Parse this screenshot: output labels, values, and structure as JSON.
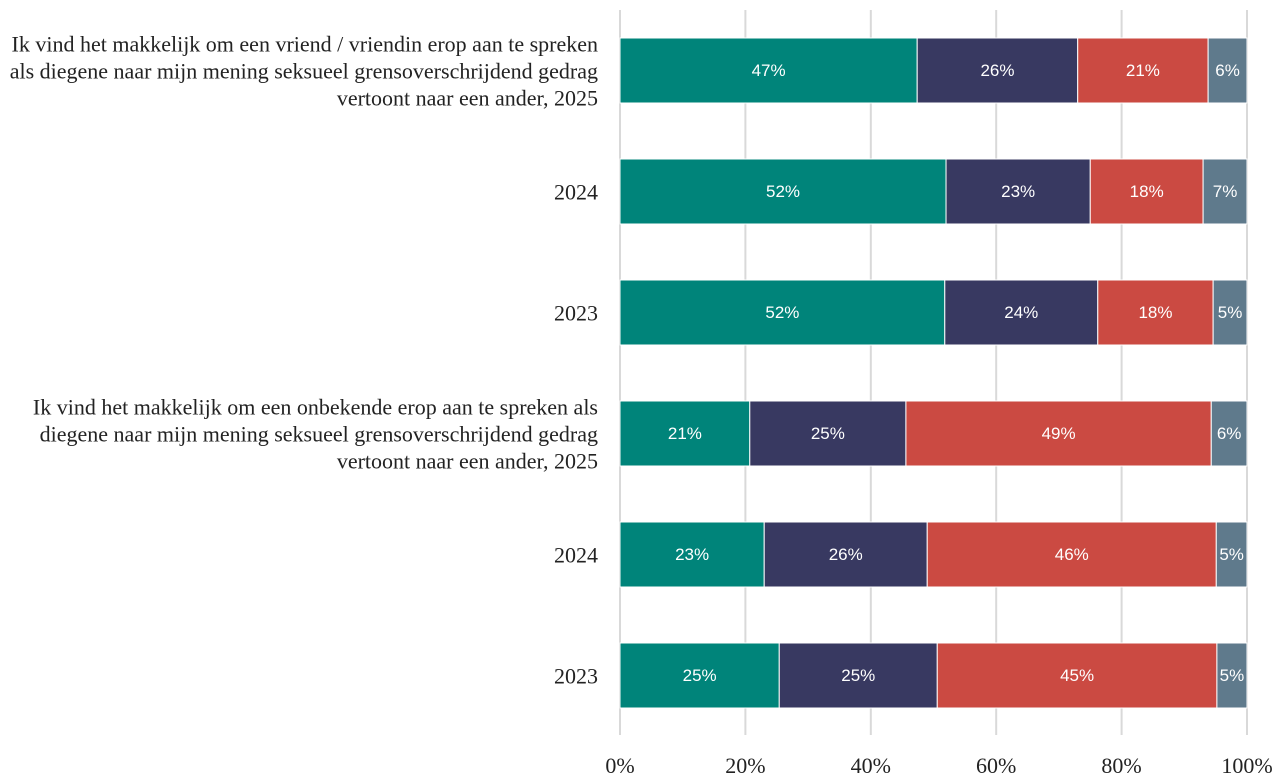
{
  "chart_data": {
    "type": "stacked-bar-horizontal",
    "categories": [
      "Ik vind het makkelijk om een vriend / vriendin erop aan te spreken als diegene naar mijn mening seksueel grensoverschrijdend gedrag vertoont naar een ander, 2025",
      "2024",
      "2023",
      "Ik vind het makkelijk om een onbekende erop aan te spreken als diegene naar mijn mening seksueel grensoverschrijdend gedrag vertoont naar een ander, 2025",
      "2024",
      "2023"
    ],
    "series": [
      {
        "color": "#00847a",
        "values": [
          47.4,
          52.0,
          51.8,
          20.7,
          23.0,
          25.4
        ],
        "value_labels": [
          "47%",
          "52%",
          "52%",
          "21%",
          "23%",
          "25%"
        ]
      },
      {
        "color": "#383961",
        "values": [
          25.6,
          23.0,
          24.4,
          24.9,
          26.0,
          25.2
        ],
        "value_labels": [
          "26%",
          "23%",
          "24%",
          "25%",
          "26%",
          "25%"
        ]
      },
      {
        "color": "#cb4a42",
        "values": [
          20.8,
          18.0,
          18.4,
          48.7,
          46.1,
          44.6
        ],
        "value_labels": [
          "21%",
          "18%",
          "18%",
          "49%",
          "46%",
          "45%"
        ]
      },
      {
        "color": "#5f7a8c",
        "values": [
          6.2,
          7.0,
          5.4,
          5.7,
          4.9,
          4.8
        ],
        "value_labels": [
          "6%",
          "7%",
          "5%",
          "6%",
          "5%",
          "5%"
        ]
      }
    ],
    "xlim": [
      0,
      100
    ],
    "xticks": [
      {
        "value": 0,
        "label": "0%"
      },
      {
        "value": 20,
        "label": "20%"
      },
      {
        "value": 40,
        "label": "40%"
      },
      {
        "value": 60,
        "label": "60%"
      },
      {
        "value": 80,
        "label": "80%"
      },
      {
        "value": 100,
        "label": "100%"
      }
    ],
    "grid": true
  }
}
